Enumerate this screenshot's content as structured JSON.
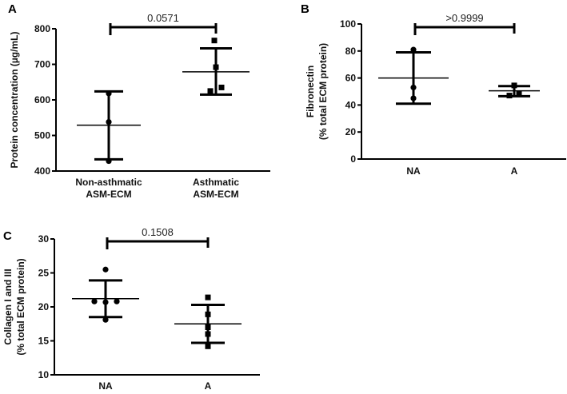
{
  "chart_data": [
    {
      "panel": "A",
      "type": "scatter",
      "ylabel": "Protein concentration (µg/mL)",
      "ylim": [
        400,
        800
      ],
      "yticks": [
        400,
        500,
        600,
        700,
        800
      ],
      "categories": [
        [
          "Non-asthmatic",
          "ASM-ECM"
        ],
        [
          "Asthmatic",
          "ASM-ECM"
        ]
      ],
      "groups": [
        {
          "marker": "circle",
          "points": [
            618,
            538,
            428
          ],
          "mean": 529,
          "sd_upper": 624,
          "sd_lower": 433
        },
        {
          "marker": "square",
          "points": [
            767,
            692,
            625,
            635
          ],
          "mean": 679,
          "sd_upper": 745,
          "sd_lower": 615
        }
      ],
      "p_value": "0.0571"
    },
    {
      "panel": "B",
      "type": "scatter",
      "ylabel": [
        "Fibronectin",
        "(% total ECM protein)"
      ],
      "ylim": [
        0,
        100
      ],
      "yticks": [
        0,
        20,
        40,
        60,
        80,
        100
      ],
      "categories": [
        [
          "NA"
        ],
        [
          "A"
        ]
      ],
      "groups": [
        {
          "marker": "circle",
          "points": [
            81,
            53,
            45
          ],
          "mean": 60,
          "sd_upper": 79,
          "sd_lower": 41
        },
        {
          "marker": "square",
          "points": [
            54.5,
            47,
            48.5
          ],
          "mean": 50.5,
          "sd_upper": 54,
          "sd_lower": 46.5
        }
      ],
      "p_value": ">0.9999"
    },
    {
      "panel": "C",
      "type": "scatter",
      "ylabel": [
        "Collagen I and III",
        "(% total ECM protein)"
      ],
      "ylim": [
        10,
        30
      ],
      "yticks": [
        10,
        15,
        20,
        25,
        30
      ],
      "categories": [
        [
          "NA"
        ],
        [
          "A"
        ]
      ],
      "groups": [
        {
          "marker": "circle",
          "points": [
            25.5,
            20.8,
            20.7,
            20.8,
            18.1
          ],
          "mean": 21.2,
          "sd_upper": 23.9,
          "sd_lower": 18.5
        },
        {
          "marker": "square",
          "points": [
            21.4,
            18.9,
            17.0,
            16.0,
            14.2
          ],
          "mean": 17.5,
          "sd_upper": 20.3,
          "sd_lower": 14.7
        }
      ],
      "p_value": "0.1508"
    }
  ],
  "colors": {
    "marks": "#000000",
    "text": "#111111"
  }
}
